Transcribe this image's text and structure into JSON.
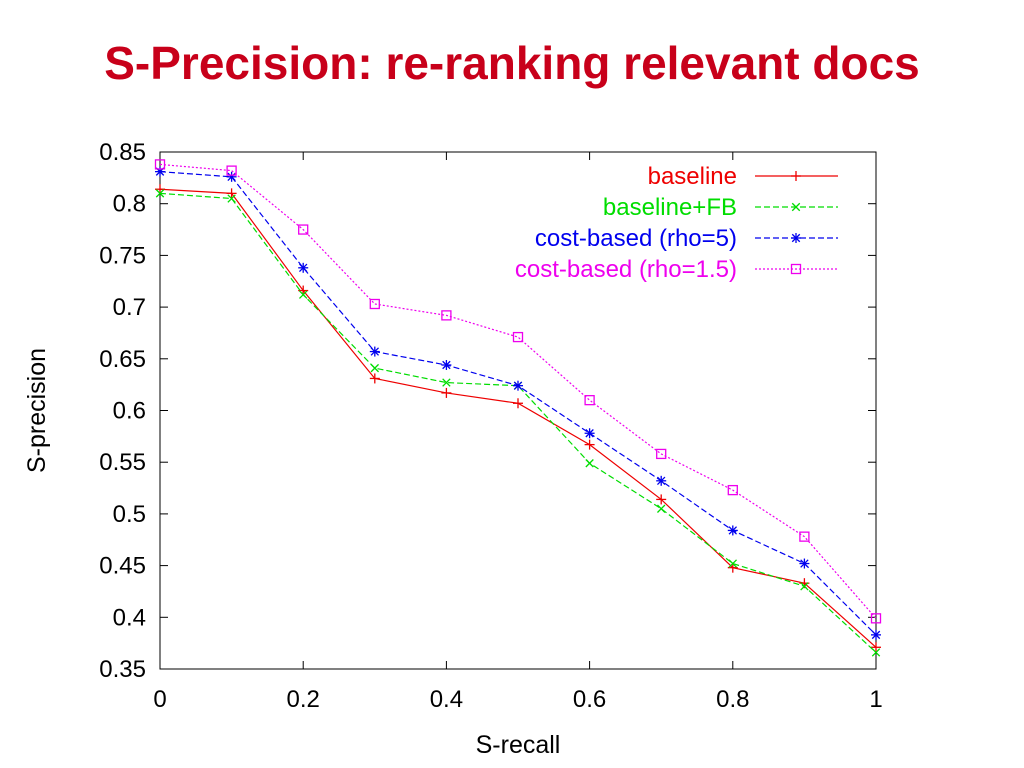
{
  "slide": {
    "title": "S-Precision: re-ranking relevant docs"
  },
  "chart_data": {
    "type": "line",
    "title": "",
    "xlabel": "S-recall",
    "ylabel": "S-precision",
    "xlim": [
      0,
      1
    ],
    "ylim": [
      0.35,
      0.85
    ],
    "x_ticks": [
      "0",
      "0.2",
      "0.4",
      "0.6",
      "0.8",
      "1"
    ],
    "y_ticks": [
      "0.35",
      "0.4",
      "0.45",
      "0.5",
      "0.55",
      "0.6",
      "0.65",
      "0.7",
      "0.75",
      "0.8",
      "0.85"
    ],
    "legend_position": "top-right",
    "x": [
      0,
      0.1,
      0.2,
      0.3,
      0.4,
      0.5,
      0.6,
      0.7,
      0.8,
      0.9,
      1.0
    ],
    "series": [
      {
        "name": "baseline",
        "color": "#ee0000",
        "marker": "plus",
        "dash": "solid",
        "values": [
          0.814,
          0.81,
          0.716,
          0.631,
          0.617,
          0.607,
          0.567,
          0.514,
          0.448,
          0.433,
          0.371
        ]
      },
      {
        "name": "baseline+FB",
        "color": "#00dd00",
        "marker": "cross",
        "dash": "dashed",
        "values": [
          0.81,
          0.805,
          0.712,
          0.641,
          0.627,
          0.624,
          0.549,
          0.505,
          0.452,
          0.43,
          0.366
        ]
      },
      {
        "name": "cost-based (rho=5)",
        "color": "#0000ee",
        "marker": "star",
        "dash": "dashed",
        "values": [
          0.831,
          0.826,
          0.738,
          0.657,
          0.644,
          0.624,
          0.578,
          0.532,
          0.484,
          0.452,
          0.383
        ]
      },
      {
        "name": "cost-based (rho=1.5)",
        "color": "#ee00ee",
        "marker": "square",
        "dash": "dotted",
        "values": [
          0.838,
          0.832,
          0.775,
          0.703,
          0.692,
          0.671,
          0.61,
          0.558,
          0.523,
          0.478,
          0.399
        ]
      }
    ]
  }
}
